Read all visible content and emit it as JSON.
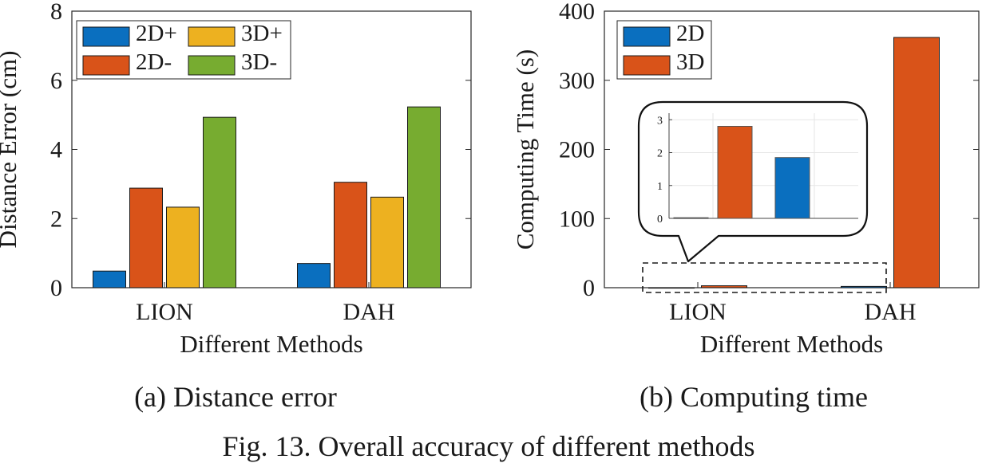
{
  "figure_caption": "Fig. 13.  Overall accuracy of different methods",
  "colors": {
    "blue": "#0A6FBF",
    "orange": "#D95319",
    "yellow": "#EDB120",
    "green": "#77AC30",
    "axis": "#262626",
    "grid": "#E6E6E6"
  },
  "chart_data": [
    {
      "type": "bar",
      "subcaption": "(a)  Distance error",
      "xlabel": "Different Methods",
      "ylabel": "Distance Error (cm)",
      "categories": [
        "LION",
        "DAH"
      ],
      "ylim": [
        0,
        8
      ],
      "yticks": [
        0,
        2,
        4,
        6,
        8
      ],
      "grid": false,
      "legend": "top-left, 2 columns",
      "series": [
        {
          "name": "2D+",
          "color": "#0A6FBF",
          "values": [
            0.48,
            0.7
          ]
        },
        {
          "name": "2D-",
          "color": "#D95319",
          "values": [
            2.88,
            3.05
          ]
        },
        {
          "name": "3D+",
          "color": "#EDB120",
          "values": [
            2.33,
            2.62
          ]
        },
        {
          "name": "3D-",
          "color": "#77AC30",
          "values": [
            4.93,
            5.23
          ]
        }
      ]
    },
    {
      "type": "bar",
      "subcaption": "(b)  Computing time",
      "xlabel": "Different Methods",
      "ylabel": "Computing Time (s)",
      "categories": [
        "LION",
        "DAH"
      ],
      "ylim": [
        0,
        400
      ],
      "yticks": [
        0,
        100,
        200,
        300,
        400
      ],
      "grid": false,
      "legend": "top-left",
      "series": [
        {
          "name": "2D",
          "color": "#0A6FBF",
          "values": [
            0.02,
            1.85
          ]
        },
        {
          "name": "3D",
          "color": "#D95319",
          "values": [
            2.8,
            362
          ]
        }
      ],
      "inset": {
        "ylim": [
          0,
          3.2
        ],
        "yticks": [
          0,
          1,
          2,
          3
        ],
        "grid": true
      }
    }
  ]
}
